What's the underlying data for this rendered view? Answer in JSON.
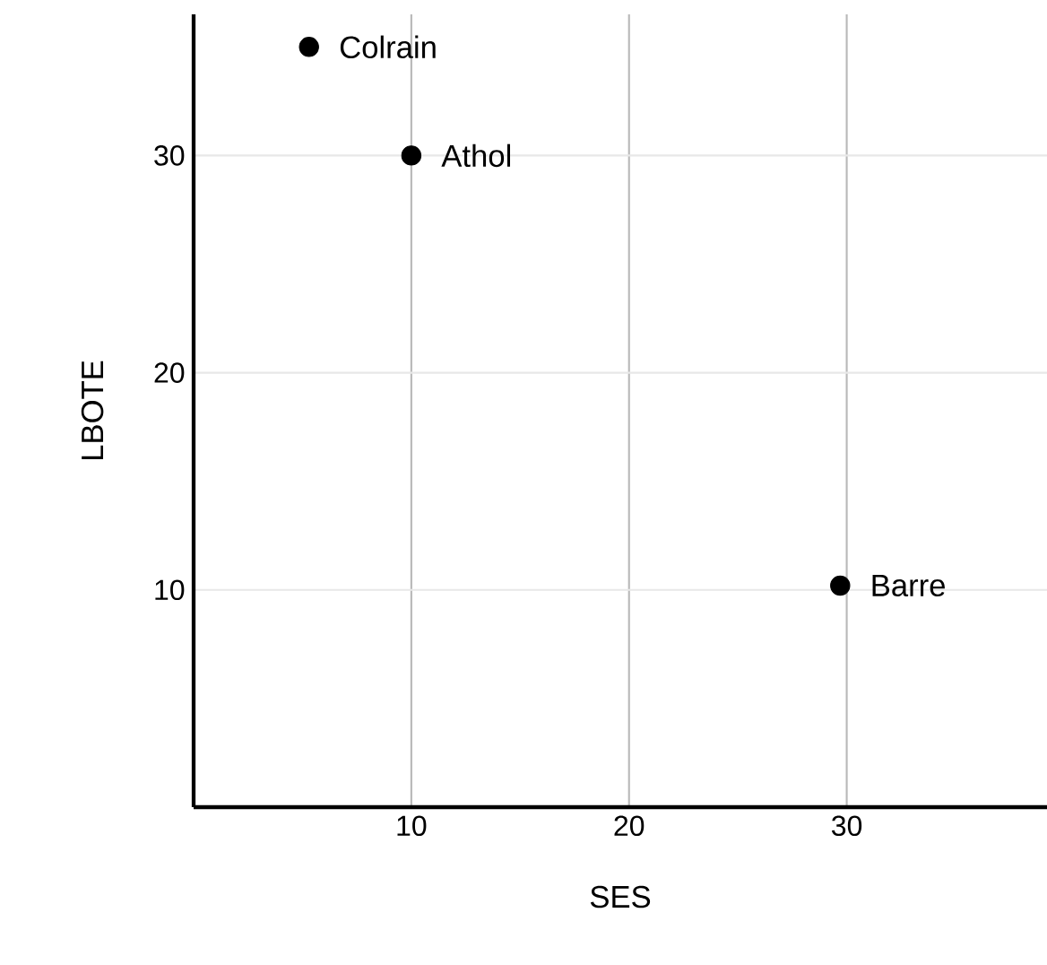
{
  "chart_data": {
    "type": "scatter",
    "xlabel": "SES",
    "ylabel": "LBOTE",
    "x": [
      5.3,
      10,
      29.7
    ],
    "values": [
      35,
      30,
      10.2
    ],
    "color": "#000000",
    "xlim": [
      0,
      39.2
    ],
    "ylim": [
      0,
      36.5
    ],
    "xticks": [
      10,
      20,
      30
    ],
    "yticks": [
      10,
      20,
      30
    ],
    "grid": true,
    "annotations": [
      {
        "text": "Colrain",
        "x": 5.3,
        "y": 35
      },
      {
        "text": "Athol",
        "x": 10,
        "y": 30
      },
      {
        "text": "Barre",
        "x": 29.7,
        "y": 10.2
      }
    ]
  }
}
